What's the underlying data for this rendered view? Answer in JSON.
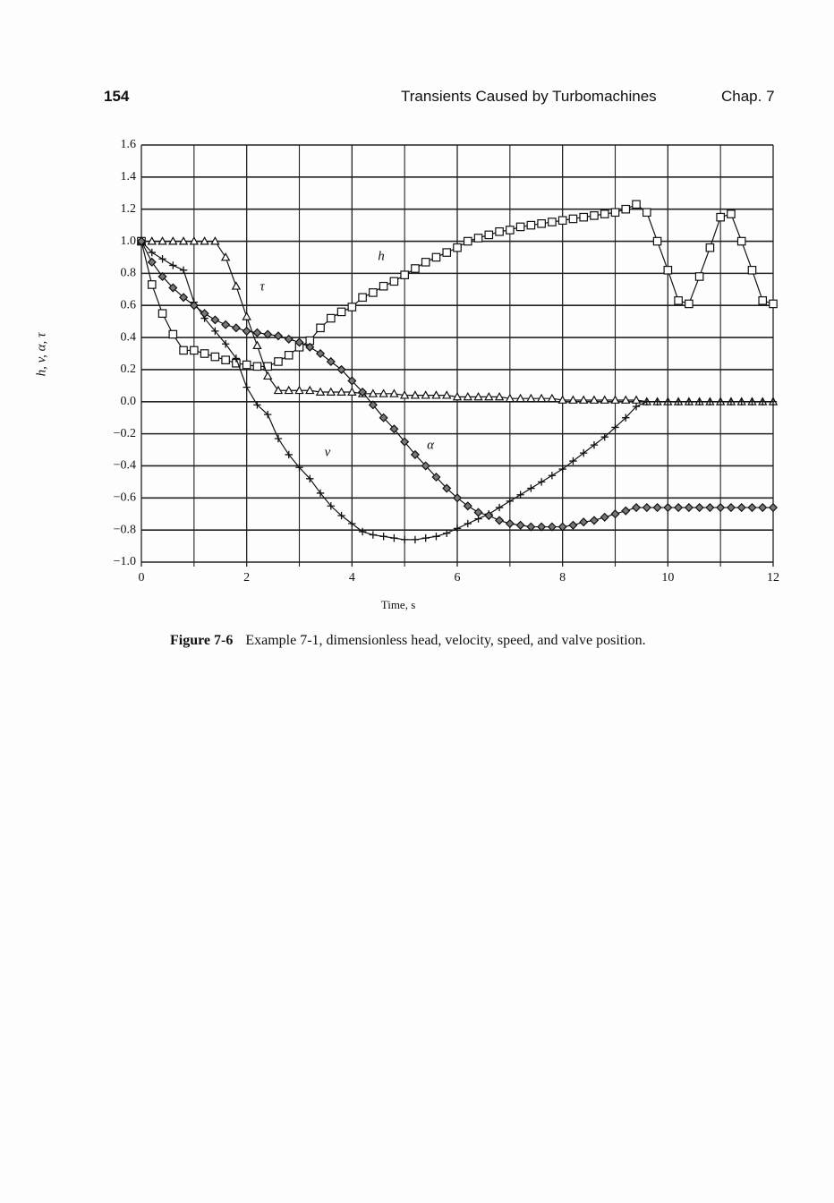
{
  "page_header": {
    "page_number": "154",
    "running_title": "Transients Caused by Turbomachines",
    "chapter": "Chap. 7"
  },
  "caption": {
    "label": "Figure 7-6",
    "text": "Example 7-1, dimensionless head, velocity, speed, and valve position."
  },
  "chart_data": {
    "type": "line",
    "xlabel": "Time, s",
    "ylabel": "h, v, α, τ",
    "xlim": [
      0,
      12
    ],
    "ylim": [
      -1,
      1.6
    ],
    "xticks": [
      0,
      2,
      4,
      6,
      8,
      10,
      12
    ],
    "x_minor_ticks": [
      1,
      3,
      5,
      7,
      9,
      11
    ],
    "yticks": [
      {
        "value": -1,
        "label": "−1.0"
      },
      {
        "value": -0.8,
        "label": "−0.8"
      },
      {
        "value": -0.6,
        "label": "−0.6"
      },
      {
        "value": -0.4,
        "label": "−0.4"
      },
      {
        "value": -0.2,
        "label": "−0.2"
      },
      {
        "value": 0,
        "label": "0.0"
      },
      0.2,
      0.4,
      0.6,
      0.8,
      {
        "value": 1,
        "label": "1.0"
      },
      1.2,
      1.4,
      1.6
    ],
    "grid": true,
    "x": [
      0,
      0.2,
      0.4,
      0.6,
      0.8,
      1,
      1.2,
      1.4,
      1.6,
      1.8,
      2,
      2.2,
      2.4,
      2.6,
      2.8,
      3,
      3.2,
      3.4,
      3.6,
      3.8,
      4,
      4.2,
      4.4,
      4.6,
      4.8,
      5,
      5.2,
      5.4,
      5.6,
      5.8,
      6,
      6.2,
      6.4,
      6.6,
      6.8,
      7,
      7.2,
      7.4,
      7.6,
      7.8,
      8,
      8.2,
      8.4,
      8.6,
      8.8,
      9,
      9.2,
      9.4,
      9.6,
      9.8,
      10,
      10.2,
      10.4,
      10.6,
      10.8,
      11,
      11.2,
      11.4,
      11.6,
      11.8,
      12
    ],
    "series": [
      {
        "name": "h",
        "color": "#111111",
        "marker": "square",
        "values": [
          1.0,
          0.73,
          0.55,
          0.42,
          0.32,
          0.32,
          0.3,
          0.28,
          0.26,
          0.24,
          0.23,
          0.22,
          0.22,
          0.25,
          0.29,
          0.34,
          0.38,
          0.46,
          0.52,
          0.56,
          0.59,
          0.65,
          0.68,
          0.72,
          0.75,
          0.79,
          0.83,
          0.87,
          0.9,
          0.93,
          0.96,
          1.0,
          1.02,
          1.04,
          1.06,
          1.07,
          1.09,
          1.1,
          1.11,
          1.12,
          1.13,
          1.14,
          1.15,
          1.16,
          1.17,
          1.18,
          1.2,
          1.23,
          1.18,
          1.0,
          0.82,
          0.63,
          0.61,
          0.78,
          0.96,
          1.15,
          1.17,
          1.0,
          0.82,
          0.63,
          0.61
        ]
      },
      {
        "name": "τ",
        "color": "#111111",
        "marker": "triangle",
        "values": [
          1.0,
          1.0,
          1.0,
          1.0,
          1.0,
          1.0,
          1.0,
          1.0,
          0.9,
          0.72,
          0.53,
          0.35,
          0.16,
          0.07,
          0.07,
          0.07,
          0.07,
          0.06,
          0.06,
          0.06,
          0.06,
          0.05,
          0.05,
          0.05,
          0.05,
          0.04,
          0.04,
          0.04,
          0.04,
          0.04,
          0.03,
          0.03,
          0.03,
          0.03,
          0.03,
          0.02,
          0.02,
          0.02,
          0.02,
          0.02,
          0.01,
          0.01,
          0.01,
          0.01,
          0.01,
          0.01,
          0.01,
          0.01,
          0.0,
          0.0,
          0.0,
          0.0,
          0.0,
          0.0,
          0.0,
          0.0,
          0.0,
          0.0,
          0.0,
          0.0,
          0.0
        ]
      },
      {
        "name": "v",
        "color": "#111111",
        "marker": "plus",
        "values": [
          1.0,
          0.93,
          0.89,
          0.85,
          0.82,
          0.62,
          0.52,
          0.44,
          0.36,
          0.27,
          0.09,
          -0.02,
          -0.08,
          -0.23,
          -0.33,
          -0.41,
          -0.48,
          -0.57,
          -0.65,
          -0.71,
          -0.76,
          -0.81,
          -0.83,
          -0.84,
          -0.85,
          -0.86,
          -0.86,
          -0.85,
          -0.84,
          -0.82,
          -0.79,
          -0.76,
          -0.73,
          -0.7,
          -0.66,
          -0.62,
          -0.58,
          -0.54,
          -0.5,
          -0.46,
          -0.42,
          -0.37,
          -0.32,
          -0.27,
          -0.22,
          -0.16,
          -0.1,
          -0.03,
          0.0,
          0.0,
          0.0,
          0.0,
          0.0,
          0.0,
          0.0,
          0.0,
          0.0,
          0.0,
          0.0,
          0.0,
          0.0
        ]
      },
      {
        "name": "α",
        "color": "#111111",
        "marker": "diamond",
        "values": [
          1.0,
          0.87,
          0.78,
          0.71,
          0.65,
          0.6,
          0.55,
          0.51,
          0.48,
          0.46,
          0.44,
          0.43,
          0.42,
          0.41,
          0.39,
          0.37,
          0.34,
          0.3,
          0.25,
          0.2,
          0.13,
          0.06,
          -0.02,
          -0.1,
          -0.17,
          -0.25,
          -0.33,
          -0.4,
          -0.47,
          -0.54,
          -0.6,
          -0.65,
          -0.69,
          -0.71,
          -0.74,
          -0.76,
          -0.77,
          -0.78,
          -0.78,
          -0.78,
          -0.78,
          -0.77,
          -0.75,
          -0.74,
          -0.72,
          -0.7,
          -0.68,
          -0.66,
          -0.66,
          -0.66,
          -0.66,
          -0.66,
          -0.66,
          -0.66,
          -0.66,
          -0.66,
          -0.66,
          -0.66,
          -0.66,
          -0.66,
          -0.66
        ]
      }
    ]
  }
}
